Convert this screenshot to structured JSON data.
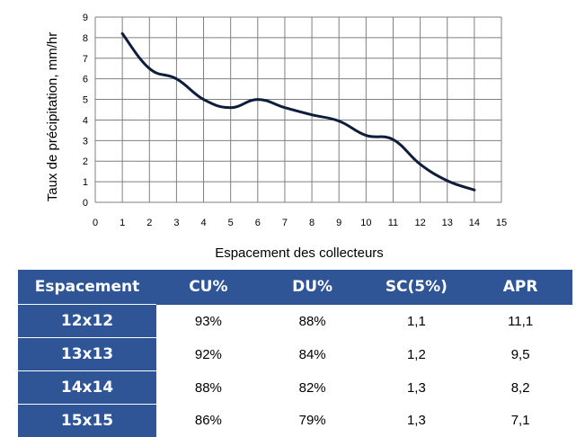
{
  "chart_data": {
    "type": "line",
    "title": "",
    "xlabel": "Espacement des collecteurs",
    "ylabel": "Taux de précipitation, mm/hr",
    "xlim": [
      0,
      15
    ],
    "ylim": [
      0,
      9
    ],
    "xticks": [
      "0",
      "1",
      "2",
      "3",
      "4",
      "5",
      "6",
      "7",
      "8",
      "9",
      "10",
      "11",
      "12",
      "13",
      "14",
      "15"
    ],
    "yticks": [
      "0",
      "1",
      "2",
      "3",
      "4",
      "5",
      "6",
      "7",
      "8",
      "9"
    ],
    "grid": true,
    "legend": "none",
    "line_color": "#0f1d3d",
    "series": [
      {
        "x": [
          1,
          2,
          3,
          4,
          5,
          6,
          7,
          8,
          9,
          10,
          11,
          12,
          13,
          14
        ],
        "y": [
          8.2,
          6.5,
          6.0,
          5.0,
          4.6,
          5.0,
          4.6,
          4.25,
          3.95,
          3.25,
          3.05,
          1.85,
          1.05,
          0.6
        ]
      }
    ]
  },
  "table": {
    "header_color": "#2f5597",
    "headers": [
      "Espacement",
      "CU%",
      "DU%",
      "SC(5%)",
      "APR"
    ],
    "rows": [
      [
        "12x12",
        "93%",
        "88%",
        "1,1",
        "11,1"
      ],
      [
        "13x13",
        "92%",
        "84%",
        "1,2",
        "9,5"
      ],
      [
        "14x14",
        "88%",
        "82%",
        "1,3",
        "8,2"
      ],
      [
        "15x15",
        "86%",
        "79%",
        "1,3",
        "7,1"
      ]
    ]
  }
}
